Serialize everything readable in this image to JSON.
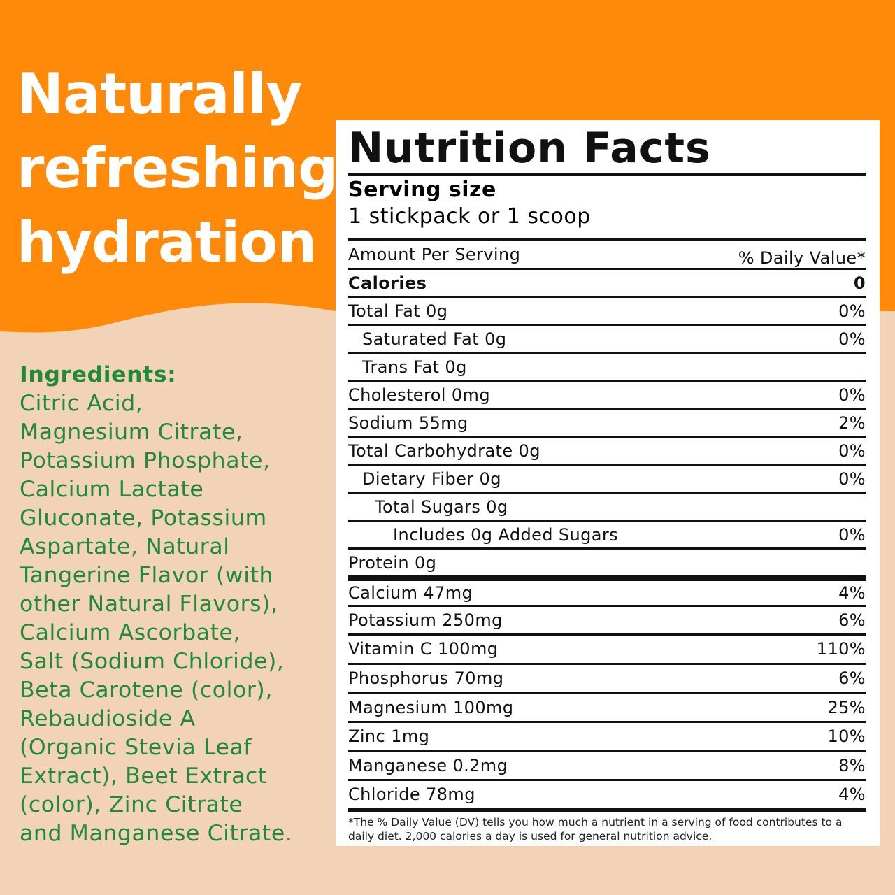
{
  "colors": {
    "orange": "#ff8a0a",
    "peach": "#f2d3b8",
    "green": "#1e8a3a"
  },
  "headline": [
    "Naturally",
    "refreshing",
    "hydration"
  ],
  "ingredients": {
    "heading": "Ingredients:",
    "lines": [
      "Citric Acid,",
      "Magnesium Citrate,",
      "Potassium Phosphate,",
      "Calcium Lactate",
      "Gluconate, Potassium",
      "Aspartate, Natural",
      "Tangerine Flavor (with",
      "other Natural Flavors),",
      "Calcium Ascorbate,",
      "Salt (Sodium Chloride),",
      "Beta Carotene (color),",
      "Rebaudioside A",
      "(Organic Stevia Leaf",
      "Extract), Beet Extract",
      "(color), Zinc Citrate",
      "and Manganese Citrate."
    ]
  },
  "label": {
    "title": "Nutrition Facts",
    "serving_label": "Serving size",
    "serving_value": "1 stickpack or 1 scoop",
    "amount_per_serving": "Amount Per Serving",
    "daily_value_header": "% Daily Value*",
    "calories_label": "Calories",
    "calories_value": "0",
    "rows": [
      {
        "name": "Total Fat 0g",
        "dv": "0%"
      },
      {
        "name": "Saturated Fat 0g",
        "dv": "0%"
      },
      {
        "name": "Trans Fat 0g",
        "dv": ""
      },
      {
        "name": "Cholesterol 0mg",
        "dv": "0%"
      },
      {
        "name": "Sodium 55mg",
        "dv": "2%"
      },
      {
        "name": "Total Carbohydrate 0g",
        "dv": "0%"
      },
      {
        "name": "Dietary Fiber 0g",
        "dv": "0%"
      },
      {
        "name": "Total Sugars 0g",
        "dv": ""
      },
      {
        "name": "Includes 0g Added Sugars",
        "dv": "0%"
      },
      {
        "name": "Protein 0g",
        "dv": ""
      }
    ],
    "minerals": [
      {
        "name": "Calcium 47mg",
        "dv": "4%"
      },
      {
        "name": "Potassium 250mg",
        "dv": "6%"
      },
      {
        "name": "Vitamin C 100mg",
        "dv": "110%"
      },
      {
        "name": "Phosphorus 70mg",
        "dv": "6%"
      },
      {
        "name": "Magnesium 100mg",
        "dv": "25%"
      },
      {
        "name": "Zinc 1mg",
        "dv": "10%"
      },
      {
        "name": "Manganese 0.2mg",
        "dv": "8%"
      },
      {
        "name": "Chloride 78mg",
        "dv": "4%"
      }
    ],
    "footnote": "*The % Daily Value (DV) tells you how much a nutrient in a serving of food contributes to a daily diet. 2,000 calories a day is used for general nutrition advice."
  }
}
